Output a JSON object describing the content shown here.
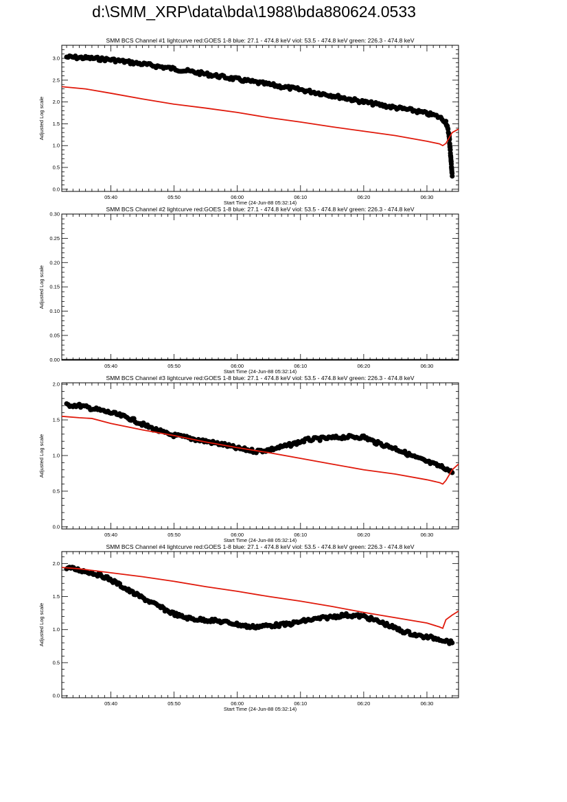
{
  "page_title": "d:\\SMM_XRP\\data\\bda\\1988\\bda880624.0533",
  "colors": {
    "black_series": "#000000",
    "red_series": "#e0190b",
    "axes": "#000000"
  },
  "chart_data": [
    {
      "type": "line",
      "title": "SMM BCS Channel #1 lightcurve  red:GOES 1-8  blue: 27.1 - 474.8 keV  viol: 53.5 - 474.8 keV  green: 226.3 - 474.8 keV",
      "xlabel": "Start Time (24-Jun-88 05:32:14)",
      "ylabel": "Adjusted Log scale",
      "x_unit": "UT time",
      "xlim": [
        "05:32:14",
        "06:35:00"
      ],
      "x_ticks": [
        "05:40",
        "05:50",
        "06:00",
        "06:10",
        "06:20",
        "06:30"
      ],
      "ylim": [
        -0.05,
        3.3
      ],
      "y_ticks": [
        "0.0",
        "0.5",
        "1.0",
        "1.5",
        "2.0",
        "2.5",
        "3.0"
      ],
      "series": [
        {
          "color": "#000000",
          "style": "dots",
          "x": [
            "05:33",
            "05:36",
            "05:40",
            "05:45",
            "05:50",
            "05:55",
            "06:00",
            "06:05",
            "06:10",
            "06:15",
            "06:20",
            "06:25",
            "06:28",
            "06:31",
            "06:32",
            "06:33",
            "06:33:30",
            "06:34"
          ],
          "y": [
            3.03,
            3.01,
            2.97,
            2.87,
            2.76,
            2.64,
            2.52,
            2.4,
            2.28,
            2.15,
            2.0,
            1.87,
            1.8,
            1.7,
            1.65,
            1.55,
            1.25,
            0.3
          ]
        },
        {
          "color": "#e0190b",
          "style": "line",
          "x": [
            "05:32:14",
            "05:36",
            "05:40",
            "05:45",
            "05:50",
            "05:55",
            "06:00",
            "06:05",
            "06:10",
            "06:15",
            "06:20",
            "06:25",
            "06:30",
            "06:32",
            "06:32:30",
            "06:33",
            "06:34",
            "06:35"
          ],
          "y": [
            2.35,
            2.3,
            2.2,
            2.07,
            1.95,
            1.86,
            1.76,
            1.64,
            1.54,
            1.43,
            1.33,
            1.23,
            1.1,
            1.04,
            1.0,
            1.05,
            1.3,
            1.38
          ]
        }
      ]
    },
    {
      "type": "line",
      "title": "SMM BCS Channel #2 lightcurve  red:GOES 1-8  blue: 27.1 - 474.8 keV  viol: 53.5 - 474.8 keV  green: 226.3 - 474.8 keV",
      "xlabel": "Start Time (24-Jun-88 05:32:14)",
      "ylabel": "Adjusted Log scale",
      "x_unit": "UT time",
      "xlim": [
        "05:32:14",
        "06:35:00"
      ],
      "x_ticks": [
        "05:40",
        "05:50",
        "06:00",
        "06:10",
        "06:20",
        "06:30"
      ],
      "ylim": [
        -0.001,
        0.3
      ],
      "y_ticks": [
        "0.00",
        "0.05",
        "0.10",
        "0.15",
        "0.20",
        "0.25",
        "0.30"
      ],
      "series": [
        {
          "color": "#000000",
          "style": "line",
          "x": [
            "05:32:14",
            "06:35"
          ],
          "y": [
            0.0,
            0.0
          ]
        }
      ]
    },
    {
      "type": "line",
      "title": "SMM BCS Channel #3 lightcurve  red:GOES 1-8  blue: 27.1 - 474.8 keV  viol: 53.5 - 474.8 keV  green: 226.3 - 474.8 keV",
      "xlabel": "Start Time (24-Jun-88 05:32:14)",
      "ylabel": "Adjusted Log scale",
      "x_unit": "UT time",
      "xlim": [
        "05:32:14",
        "06:35:00"
      ],
      "x_ticks": [
        "05:40",
        "05:50",
        "06:00",
        "06:10",
        "06:20",
        "06:30"
      ],
      "ylim": [
        -0.03,
        2.02
      ],
      "y_ticks": [
        "0.0",
        "0.5",
        "1.0",
        "1.5",
        "2.0"
      ],
      "series": [
        {
          "color": "#000000",
          "style": "dots",
          "x": [
            "05:33",
            "05:35",
            "05:37",
            "05:40",
            "05:43",
            "05:46",
            "05:49",
            "05:52",
            "05:55",
            "05:58",
            "06:00",
            "06:03",
            "06:05",
            "06:08",
            "06:11",
            "06:14",
            "06:17",
            "06:20",
            "06:22",
            "06:25",
            "06:28",
            "06:31",
            "06:33",
            "06:34"
          ],
          "y": [
            1.71,
            1.7,
            1.66,
            1.6,
            1.52,
            1.4,
            1.3,
            1.25,
            1.2,
            1.15,
            1.1,
            1.06,
            1.08,
            1.14,
            1.22,
            1.24,
            1.26,
            1.26,
            1.18,
            1.1,
            0.98,
            0.88,
            0.82,
            0.76
          ]
        },
        {
          "color": "#e0190b",
          "style": "line",
          "x": [
            "05:32:14",
            "05:35",
            "05:37",
            "05:40",
            "05:45",
            "05:50",
            "05:55",
            "06:00",
            "06:05",
            "06:10",
            "06:15",
            "06:20",
            "06:25",
            "06:30",
            "06:32",
            "06:32:30",
            "06:33",
            "06:34",
            "06:35"
          ],
          "y": [
            1.55,
            1.53,
            1.52,
            1.45,
            1.36,
            1.28,
            1.19,
            1.11,
            1.04,
            0.96,
            0.88,
            0.8,
            0.74,
            0.66,
            0.62,
            0.6,
            0.65,
            0.8,
            0.88
          ]
        }
      ]
    },
    {
      "type": "line",
      "title": "SMM BCS Channel #4 lightcurve  red:GOES 1-8  blue: 27.1 - 474.8 keV  viol: 53.5 - 474.8 keV  green: 226.3 - 474.8 keV",
      "xlabel": "Start Time (24-Jun-88 05:32:14)",
      "ylabel": "Adjusted Log scale",
      "x_unit": "UT time",
      "xlim": [
        "05:32:14",
        "06:35:00"
      ],
      "x_ticks": [
        "05:40",
        "05:50",
        "06:00",
        "06:10",
        "06:20",
        "06:30"
      ],
      "ylim": [
        -0.03,
        2.18
      ],
      "y_ticks": [
        "0.0",
        "0.5",
        "1.0",
        "1.5",
        "2.0"
      ],
      "series": [
        {
          "color": "#000000",
          "style": "dots",
          "x": [
            "05:33",
            "05:35",
            "05:37",
            "05:39",
            "05:41",
            "05:43",
            "05:45",
            "05:47",
            "05:49",
            "05:51",
            "05:53",
            "05:56",
            "05:59",
            "06:02",
            "06:05",
            "06:08",
            "06:11",
            "06:14",
            "06:17",
            "06:20",
            "06:23",
            "06:26",
            "06:29",
            "06:32",
            "06:34"
          ],
          "y": [
            1.94,
            1.9,
            1.86,
            1.8,
            1.7,
            1.58,
            1.48,
            1.38,
            1.28,
            1.2,
            1.16,
            1.14,
            1.1,
            1.04,
            1.06,
            1.08,
            1.14,
            1.18,
            1.22,
            1.2,
            1.1,
            0.98,
            0.9,
            0.86,
            0.8
          ]
        },
        {
          "color": "#e0190b",
          "style": "line",
          "x": [
            "05:32:14",
            "05:35",
            "05:40",
            "05:45",
            "05:50",
            "05:55",
            "06:00",
            "06:05",
            "06:10",
            "06:15",
            "06:20",
            "06:25",
            "06:30",
            "06:32",
            "06:32:30",
            "06:33",
            "06:34",
            "06:35"
          ],
          "y": [
            1.94,
            1.92,
            1.86,
            1.8,
            1.73,
            1.65,
            1.58,
            1.5,
            1.43,
            1.35,
            1.26,
            1.18,
            1.1,
            1.04,
            1.02,
            1.15,
            1.22,
            1.28
          ]
        }
      ]
    }
  ]
}
